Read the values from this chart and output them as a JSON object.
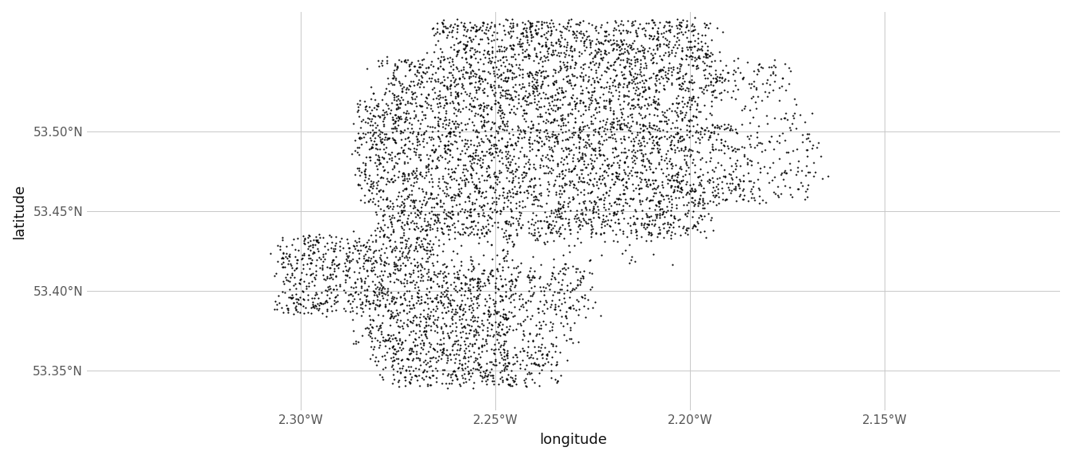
{
  "title": "",
  "xlabel": "longitude",
  "ylabel": "latitude",
  "lon_min": -2.355,
  "lon_max": -2.105,
  "lat_min": 53.325,
  "lat_max": 53.575,
  "xticks": [
    -2.3,
    -2.25,
    -2.2,
    -2.15
  ],
  "yticks": [
    53.35,
    53.4,
    53.45,
    53.5
  ],
  "xtick_labels": [
    "2.30°W",
    "2.25°W",
    "2.20°W",
    "2.15°W"
  ],
  "ytick_labels": [
    "53.35°N",
    "53.40°N",
    "53.45°N",
    "53.50°N"
  ],
  "point_color": "#000000",
  "point_size": 2.5,
  "background_color": "#ffffff",
  "grid_color": "#c8c8c8",
  "n_points": 7000,
  "seed": 42
}
